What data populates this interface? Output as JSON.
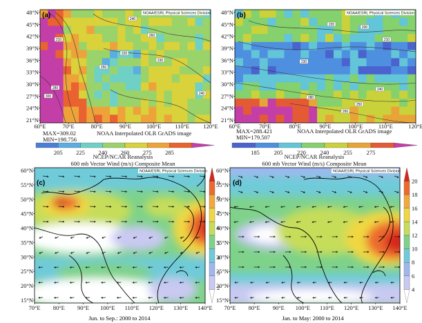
{
  "panels": [
    {
      "id": "a",
      "label": "(a)",
      "watermark": "NOAA/ESRL Physical Sciences Division",
      "y_labels": [
        "48°N",
        "45°N",
        "42°N",
        "39°N",
        "36°N",
        "33°N",
        "30°N",
        "27°N",
        "24°N",
        "21°N"
      ],
      "x_labels": [
        "60°E",
        "70°E",
        "80°E",
        "90°E",
        "100°E",
        "110°E",
        "120°E"
      ],
      "max_text": "MAX=309.02",
      "min_text": "MIN=198.756",
      "source_text": "NOAA Interpolated OLR GrADS image",
      "colorbar": [
        "205",
        "225",
        "240",
        "260",
        "275",
        "285"
      ],
      "contour_labels": [
        "240",
        "260",
        "210",
        "220",
        "230",
        "250",
        "280",
        "300",
        "240"
      ]
    },
    {
      "id": "b",
      "label": "(b)",
      "watermark": "NOAA/ESRL Physical Sciences Division",
      "y_labels": [
        "48°N",
        "45°N",
        "42°N",
        "39°N",
        "36°N",
        "33°N",
        "30°N",
        "27°N",
        "24°N",
        "21°N"
      ],
      "x_labels": [
        "60°E",
        "70°E",
        "80°E",
        "90°E",
        "100°E",
        "110°E",
        "120°E"
      ],
      "max_text": "MAX=288.421",
      "min_text": "MIN=179.507",
      "source_text": "NOAA Interpolated OLR GrADS image",
      "colorbar": [
        "185",
        "205",
        "220",
        "240",
        "255",
        "275"
      ],
      "contour_labels": [
        "220",
        "200",
        "210",
        "230",
        "240",
        "250",
        "260",
        "280"
      ]
    },
    {
      "id": "c",
      "label": "(c)",
      "watermark": "NOAA/ESRL Physical Sciences Division",
      "title_line1": "NCEP/NCAR Reanalysis",
      "title_line2": "600 mb Vector Wind (m/s) Composite Mean",
      "y_labels": [
        "60°N",
        "55°N",
        "50°N",
        "45°N",
        "40°N",
        "35°N",
        "30°N",
        "25°N",
        "20°N",
        "15°N"
      ],
      "x_labels": [
        "70°E",
        "80°E",
        "90°E",
        "100°E",
        "110°E",
        "120°E",
        "130°E",
        "140°E"
      ],
      "colorbar": [
        "9",
        "8",
        "7",
        "6",
        "5",
        "4",
        "3",
        "2"
      ],
      "caption": "Jun. to Sep.: 2000 to 2014"
    },
    {
      "id": "d",
      "label": "(d)",
      "watermark": "NOAA/ESRL Physical Sciences Division",
      "title_line1": "NCEP/NCAR Reanalysis",
      "title_line2": "600 mb Vector Wind (m/s) Composite Mean",
      "y_labels": [
        "60°N",
        "55°N",
        "50°N",
        "45°N",
        "40°N",
        "35°N",
        "30°N",
        "25°N",
        "20°N",
        "15°N"
      ],
      "x_labels": [
        "70°E",
        "80°E",
        "90°E",
        "100°E",
        "110°E",
        "120°E",
        "130°E",
        "140°E"
      ],
      "colorbar": [
        "20",
        "18",
        "16",
        "14",
        "12",
        "10",
        "8",
        "6",
        "4"
      ],
      "caption": "Jan. to May: 2000 to 2014"
    }
  ],
  "colors": {
    "olr_a": [
      "#4a7fd6",
      "#5aaee0",
      "#6fd1c6",
      "#9ad36a",
      "#d9d23a",
      "#eea33a",
      "#e9622f",
      "#c43ea8"
    ],
    "olr_b": [
      "#4a63cf",
      "#4f8fe0",
      "#62c5d8",
      "#84d16d",
      "#c9d23b",
      "#e8a437",
      "#e45a34",
      "#c43ea8"
    ],
    "wind": [
      "#ffffff",
      "#c9c9f2",
      "#9fb7ee",
      "#6fcbd9",
      "#7ed28a",
      "#c6dd5a",
      "#f0d742",
      "#f2a93b",
      "#ec6a2f",
      "#d7261e"
    ]
  }
}
